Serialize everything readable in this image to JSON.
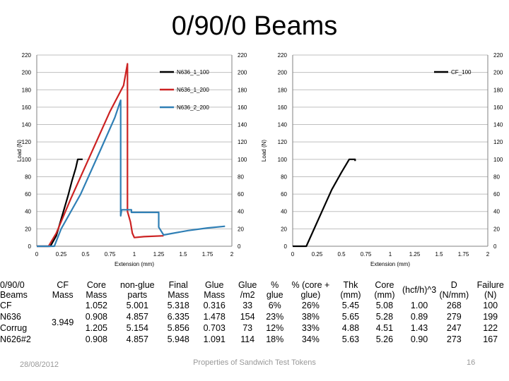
{
  "title": "0/90/0 Beams",
  "chart_data": [
    {
      "type": "line",
      "title": "",
      "xlabel": "Extension (mm)",
      "ylabel": "Load (N)",
      "xlim": [
        0,
        2
      ],
      "ylim": [
        0,
        220
      ],
      "x_ticks": [
        "0",
        "0.25",
        "0.5",
        "0.75",
        "1",
        "1.25",
        "1.5",
        "1.75",
        "2"
      ],
      "y_ticks": [
        "0",
        "20",
        "40",
        "60",
        "80",
        "100",
        "120",
        "140",
        "160",
        "180",
        "200",
        "220"
      ],
      "grid": true,
      "legend_position": "top-right",
      "series": [
        {
          "name": "N636_1_100",
          "color": "#000000",
          "points": [
            [
              0,
              0
            ],
            [
              0.14,
              0
            ],
            [
              0.2,
              12
            ],
            [
              0.26,
              35
            ],
            [
              0.32,
              58
            ],
            [
              0.36,
              75
            ],
            [
              0.4,
              90
            ],
            [
              0.42,
              100
            ],
            [
              0.47,
              100
            ]
          ]
        },
        {
          "name": "N636_1_200",
          "color": "#cc2222",
          "points": [
            [
              0,
              0
            ],
            [
              0.12,
              0
            ],
            [
              0.2,
              15
            ],
            [
              0.35,
              55
            ],
            [
              0.55,
              105
            ],
            [
              0.75,
              155
            ],
            [
              0.89,
              185
            ],
            [
              0.93,
              210
            ],
            [
              0.93,
              40
            ],
            [
              0.96,
              28
            ],
            [
              0.98,
              15
            ],
            [
              1.0,
              10
            ],
            [
              1.1,
              11
            ],
            [
              1.3,
              12
            ]
          ]
        },
        {
          "name": "N636_2_200",
          "color": "#2f7fb5",
          "points": [
            [
              0,
              0
            ],
            [
              0.18,
              0
            ],
            [
              0.25,
              20
            ],
            [
              0.45,
              60
            ],
            [
              0.65,
              110
            ],
            [
              0.8,
              148
            ],
            [
              0.86,
              168
            ],
            [
              0.86,
              35
            ],
            [
              0.87,
              42
            ],
            [
              0.97,
              42
            ],
            [
              0.97,
              39
            ],
            [
              1.25,
              39
            ],
            [
              1.25,
              22
            ],
            [
              1.3,
              13
            ],
            [
              1.55,
              18
            ],
            [
              1.75,
              21
            ],
            [
              1.93,
              23
            ]
          ]
        }
      ]
    },
    {
      "type": "line",
      "title": "",
      "xlabel": "Extension (mm)",
      "ylabel": "Load (N)",
      "xlim": [
        0,
        2
      ],
      "ylim": [
        0,
        220
      ],
      "x_ticks": [
        "0",
        "0.25",
        "0.5",
        "0.75",
        "1",
        "1.25",
        "1.5",
        "1.75",
        "2"
      ],
      "y_ticks": [
        "0",
        "20",
        "40",
        "60",
        "80",
        "100",
        "120",
        "140",
        "160",
        "180",
        "200",
        "220"
      ],
      "grid": true,
      "legend_position": "top-right",
      "series": [
        {
          "name": "CF_100",
          "color": "#000000",
          "points": [
            [
              0,
              0
            ],
            [
              0.14,
              0
            ],
            [
              0.2,
              15
            ],
            [
              0.3,
              40
            ],
            [
              0.4,
              65
            ],
            [
              0.5,
              85
            ],
            [
              0.58,
              100
            ],
            [
              0.64,
              100
            ],
            [
              0.64,
              98
            ]
          ]
        }
      ]
    }
  ],
  "table": {
    "headers": [
      "0/90/0 Beams",
      "CF Mass",
      "Core Mass",
      "non-glue parts",
      "Final Mass",
      "Glue Mass",
      "Glue /m2",
      "% glue",
      "% (core + glue)",
      "Thk (mm)",
      "Core (mm)",
      "(hcf/h)^3",
      "D (N/mm)",
      "Failure (N)"
    ],
    "rows": [
      [
        "CF",
        "",
        "1.052",
        "5.001",
        "5.318",
        "0.316",
        "33",
        "6%",
        "26%",
        "5.45",
        "5.08",
        "1.00",
        "268",
        "100"
      ],
      [
        "N636",
        "3.949",
        "0.908",
        "4.857",
        "6.335",
        "1.478",
        "154",
        "23%",
        "38%",
        "5.65",
        "5.28",
        "0.89",
        "279",
        "199"
      ],
      [
        "Corrug",
        "",
        "1.205",
        "5.154",
        "5.856",
        "0.703",
        "73",
        "12%",
        "33%",
        "4.88",
        "4.51",
        "1.43",
        "247",
        "122"
      ],
      [
        "N626#2",
        "",
        "0.908",
        "4.857",
        "5.948",
        "1.091",
        "114",
        "18%",
        "34%",
        "5.63",
        "5.26",
        "0.90",
        "273",
        "167"
      ]
    ]
  },
  "footer": {
    "date": "28/08/2012",
    "text": "Properties of Sandwich Test Tokens",
    "page": "16"
  }
}
